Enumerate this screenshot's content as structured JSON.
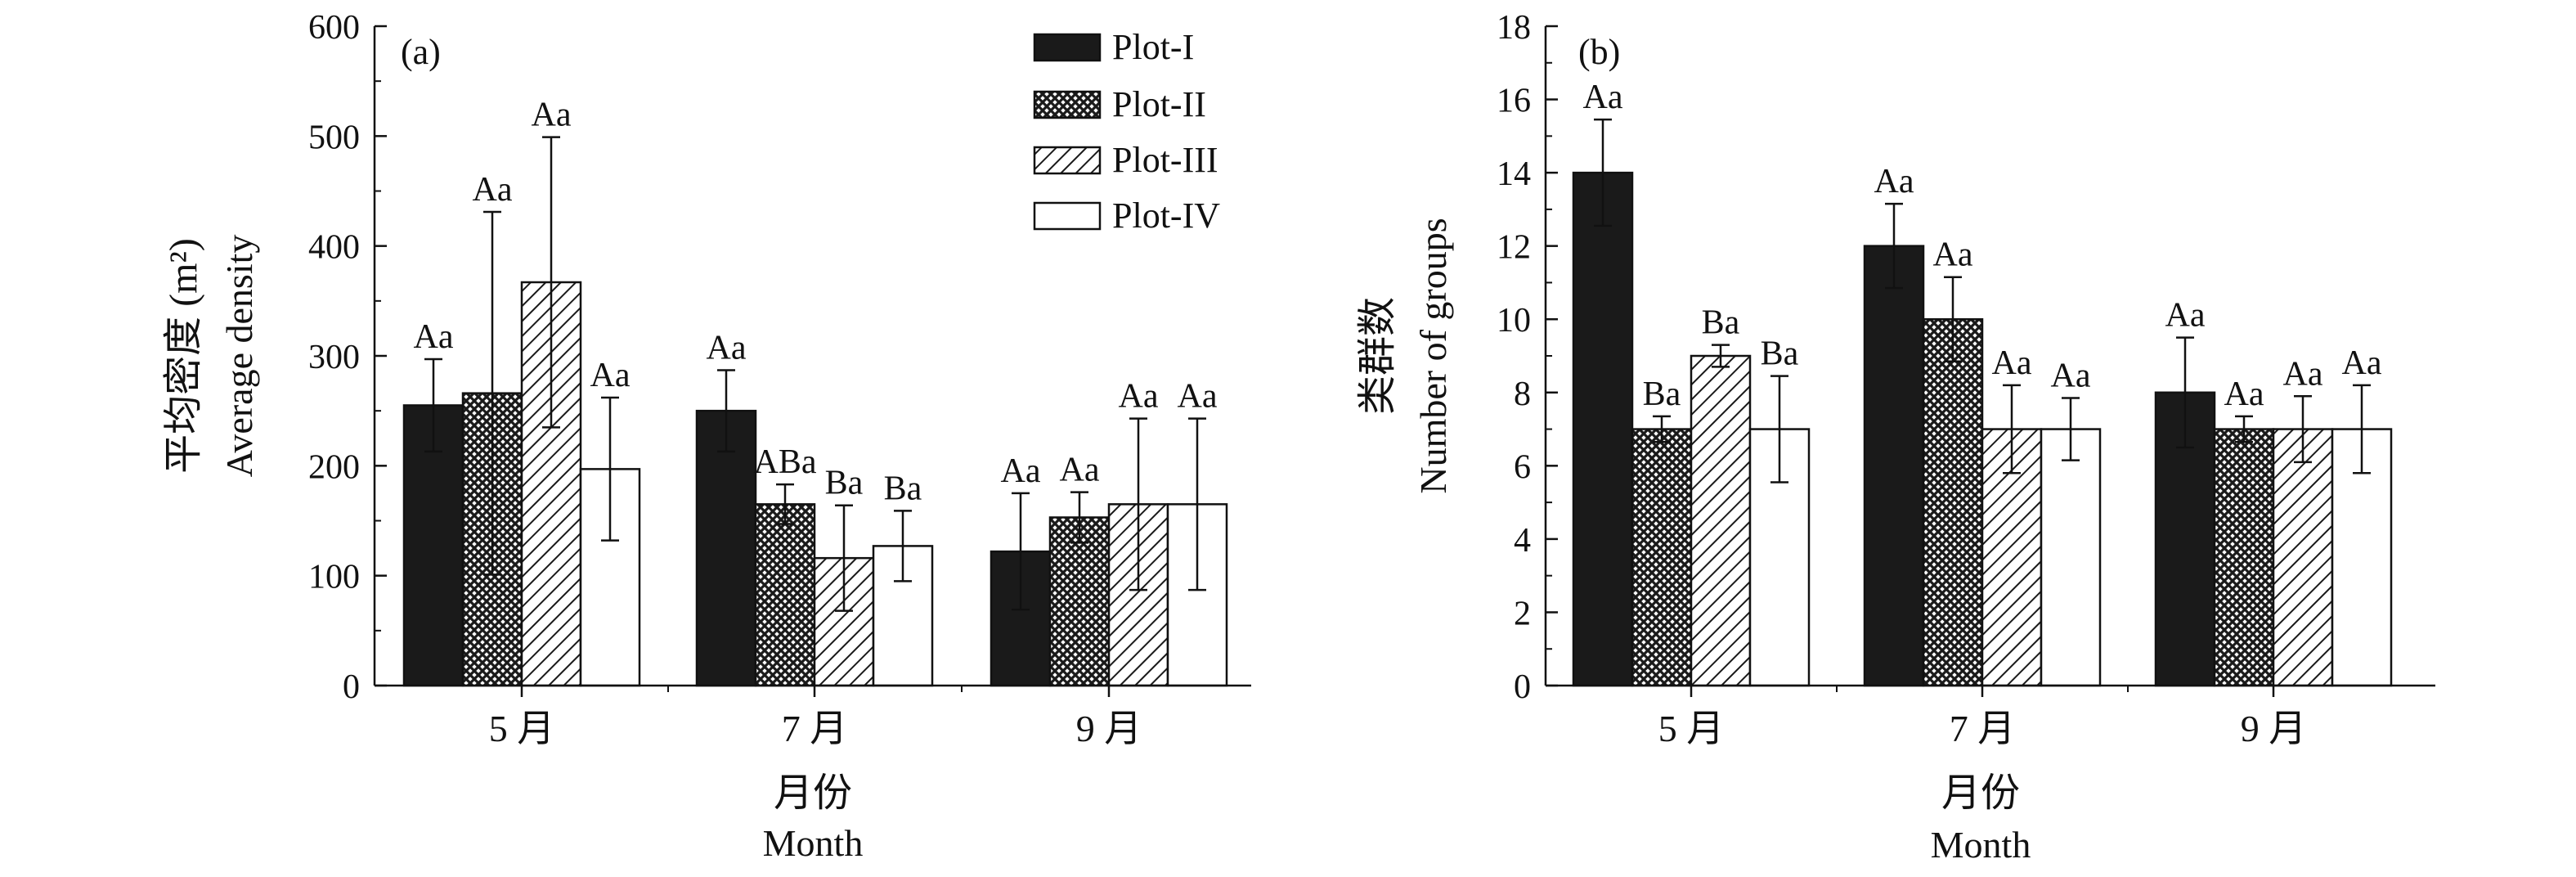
{
  "colors": {
    "plot_i_fill": "#1a1a1a",
    "plot_ii_fill": "crosshatch-dots",
    "plot_iii_fill": "diagonal-hatch",
    "plot_iv_fill": "#ffffff",
    "axis": "#111111"
  },
  "legend": {
    "placement": "top-right of panel (a)",
    "items": [
      "Plot-I",
      "Plot-II",
      "Plot-III",
      "Plot-IV"
    ]
  },
  "chart_data": [
    {
      "type": "bar",
      "panel_label": "(a)",
      "categories": [
        "5 月",
        "7 月",
        "9 月"
      ],
      "xlabel_cn": "月份",
      "xlabel_en": "Month",
      "ylabel_cn": "平均密度 (m²)",
      "ylabel_en": "Average density",
      "ylim": [
        0,
        600
      ],
      "yticks": [
        0,
        100,
        200,
        300,
        400,
        500,
        600
      ],
      "series": [
        {
          "name": "Plot-I",
          "values": [
            255,
            250,
            122
          ],
          "errors": [
            42,
            37,
            53
          ],
          "letters": [
            "Aa",
            "Aa",
            "Aa"
          ]
        },
        {
          "name": "Plot-II",
          "values": [
            266,
            165,
            153
          ],
          "errors": [
            165,
            18,
            23
          ],
          "letters": [
            "Aa",
            "ABa",
            "Aa"
          ]
        },
        {
          "name": "Plot-III",
          "values": [
            367,
            116,
            165
          ],
          "errors": [
            132,
            48,
            78
          ],
          "letters": [
            "Aa",
            "Ba",
            "Aa"
          ]
        },
        {
          "name": "Plot-IV",
          "values": [
            197,
            127,
            165
          ],
          "errors": [
            65,
            32,
            78
          ],
          "letters": [
            "Aa",
            "Ba",
            "Aa"
          ]
        }
      ]
    },
    {
      "type": "bar",
      "panel_label": "(b)",
      "categories": [
        "5 月",
        "7 月",
        "9 月"
      ],
      "xlabel_cn": "月份",
      "xlabel_en": "Month",
      "ylabel_cn": "类群数",
      "ylabel_en": "Number of groups",
      "ylim": [
        0,
        18
      ],
      "yticks": [
        0,
        2,
        4,
        6,
        8,
        10,
        12,
        14,
        16,
        18
      ],
      "series": [
        {
          "name": "Plot-I",
          "values": [
            14,
            12,
            8
          ],
          "errors": [
            1.45,
            1.15,
            1.5
          ],
          "letters": [
            "Aa",
            "Aa",
            "Aa"
          ]
        },
        {
          "name": "Plot-II",
          "values": [
            7,
            10,
            7
          ],
          "errors": [
            0.35,
            1.15,
            0.35
          ],
          "letters": [
            "Ba",
            "Aa",
            "Aa"
          ]
        },
        {
          "name": "Plot-III",
          "values": [
            9,
            7,
            7
          ],
          "errors": [
            0.3,
            1.2,
            0.9
          ],
          "letters": [
            "Ba",
            "Aa",
            "Aa"
          ]
        },
        {
          "name": "Plot-IV",
          "values": [
            7,
            7,
            7
          ],
          "errors": [
            1.45,
            0.85,
            1.2
          ],
          "letters": [
            "Ba",
            "Aa",
            "Aa"
          ]
        }
      ]
    }
  ]
}
